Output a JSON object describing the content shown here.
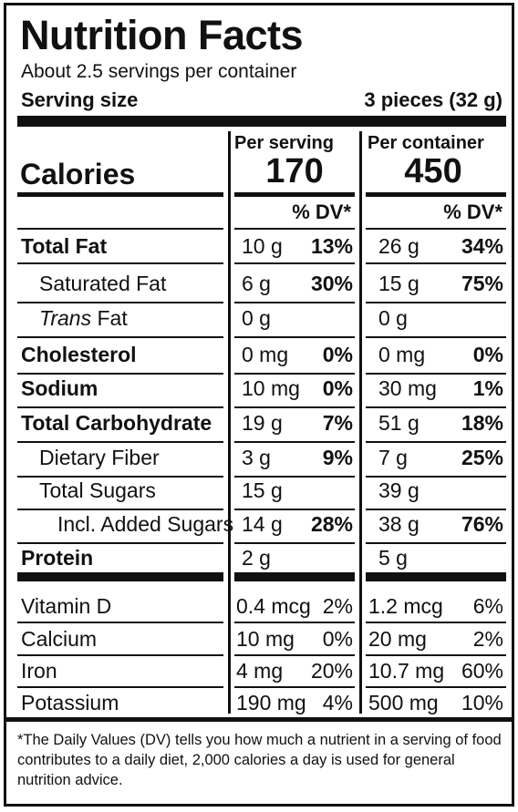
{
  "title": "Nutrition Facts",
  "servings": "About 2.5 servings per container",
  "serving_size_label": "Serving size",
  "serving_size_value": "3 pieces (32 g)",
  "calories_label": "Calories",
  "col1_header": "Per serving",
  "col2_header": "Per container",
  "col1_calories": "170",
  "col2_calories": "450",
  "dv_header": "% DV*",
  "nutrients": [
    {
      "prefix": "",
      "name": "Total Fat",
      "s_amt": "10 g",
      "s_dv": "13%",
      "c_amt": "26 g",
      "c_dv": "34%"
    },
    {
      "prefix": "",
      "name": "Saturated Fat",
      "s_amt": "6 g",
      "s_dv": "30%",
      "c_amt": "15 g",
      "c_dv": "75%"
    },
    {
      "prefix": "Trans",
      "name": " Fat",
      "s_amt": "0 g",
      "s_dv": "",
      "c_amt": "0 g",
      "c_dv": ""
    },
    {
      "prefix": "",
      "name": "Cholesterol",
      "s_amt": "0 mg",
      "s_dv": "0%",
      "c_amt": "0 mg",
      "c_dv": "0%"
    },
    {
      "prefix": "",
      "name": "Sodium",
      "s_amt": "10 mg",
      "s_dv": "0%",
      "c_amt": "30 mg",
      "c_dv": "1%"
    },
    {
      "prefix": "",
      "name": "Total Carbohydrate",
      "s_amt": "19 g",
      "s_dv": "7%",
      "c_amt": "51 g",
      "c_dv": "18%"
    },
    {
      "prefix": "",
      "name": "Dietary Fiber",
      "s_amt": "3 g",
      "s_dv": "9%",
      "c_amt": "7 g",
      "c_dv": "25%"
    },
    {
      "prefix": "",
      "name": "Total Sugars",
      "s_amt": "15 g",
      "s_dv": "",
      "c_amt": "39 g",
      "c_dv": ""
    },
    {
      "prefix": "",
      "name": "Incl. Added Sugars",
      "s_amt": "14 g",
      "s_dv": "28%",
      "c_amt": "38 g",
      "c_dv": "76%"
    },
    {
      "prefix": "",
      "name": "Protein",
      "s_amt": "2 g",
      "s_dv": "",
      "c_amt": "5 g",
      "c_dv": ""
    }
  ],
  "vitamins": [
    {
      "name": "Vitamin D",
      "s_amt": "0.4 mcg",
      "s_dv": "2%",
      "c_amt": "1.2 mcg",
      "c_dv": "6%"
    },
    {
      "name": "Calcium",
      "s_amt": "10 mg",
      "s_dv": "0%",
      "c_amt": "20 mg",
      "c_dv": "2%"
    },
    {
      "name": "Iron",
      "s_amt": "4 mg",
      "s_dv": "20%",
      "c_amt": "10.7 mg",
      "c_dv": "60%"
    },
    {
      "name": "Potassium",
      "s_amt": "190 mg",
      "s_dv": "4%",
      "c_amt": "500 mg",
      "c_dv": "10%"
    }
  ],
  "footnote": "*The Daily Values (DV) tells you how much a nutrient in a serving of food contributes to a daily diet, 2,000 calories a day is used for general nutrition advice."
}
